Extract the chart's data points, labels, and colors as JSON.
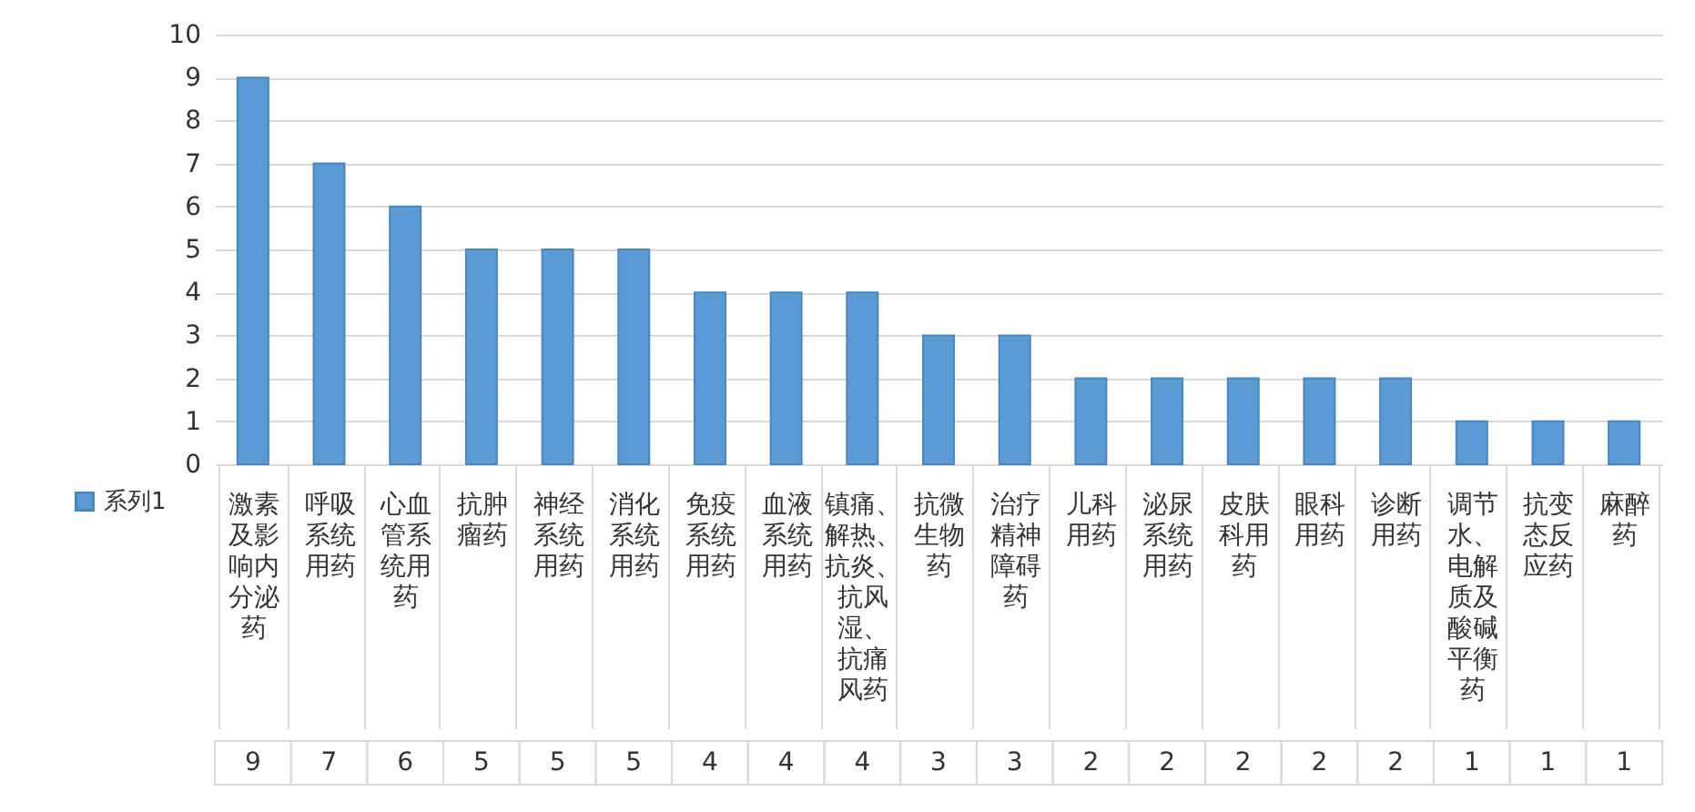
{
  "chart_data": {
    "type": "bar",
    "categories": [
      "激素及影响内分泌药",
      "呼吸系统用药",
      "心血管系统用药",
      "抗肿瘤药",
      "神经系统用药",
      "消化系统用药",
      "免疫系统用药",
      "血液系统用药",
      "镇痛、解热、抗炎、抗风湿、抗痛风药",
      "抗微生物药",
      "治疗精神障碍药",
      "儿科用药",
      "泌尿系统用药",
      "皮肤科用药",
      "眼科用药",
      "诊断用药",
      "调节水、电解质及酸碱平衡药",
      "抗变态反应药",
      "麻醉药"
    ],
    "series": [
      {
        "name": "系列1",
        "color": "#5b9bd5",
        "values": [
          9,
          7,
          6,
          5,
          5,
          5,
          4,
          4,
          4,
          3,
          3,
          2,
          2,
          2,
          2,
          2,
          1,
          1,
          1
        ]
      }
    ],
    "ylim": [
      0,
      10
    ],
    "yticks": [
      0,
      1,
      2,
      3,
      4,
      5,
      6,
      7,
      8,
      9,
      10
    ],
    "grid": "y",
    "legend": "bottom",
    "data_labels": true
  }
}
